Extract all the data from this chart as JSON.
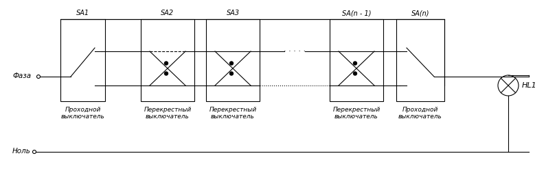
{
  "title": "",
  "background": "#ffffff",
  "line_color": "#000000",
  "box_color": "#000000",
  "text_color": "#000000",
  "faza_label": "Фаза",
  "nol_label": "Ноль",
  "hl1_label": "HL1",
  "switch_labels": [
    "SA1",
    "SA2",
    "SA3",
    "SA(n - 1)",
    "SA(n)"
  ],
  "switch_subtitles": [
    "Проходной\nвыключатель",
    "Перекрестный\nвыключатель",
    "Перекрестный\nвыключатель",
    "Перекрестный\nвыключатель",
    "Проходной\nвыключатель"
  ],
  "figsize": [
    8.11,
    2.5
  ],
  "dpi": 100
}
